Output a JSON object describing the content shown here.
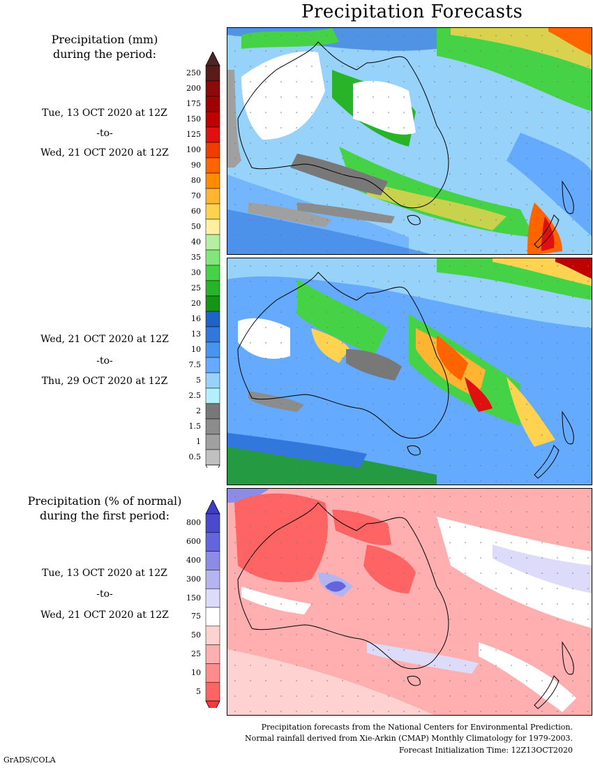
{
  "title": "Precipitation Forecasts",
  "panel1": {
    "label_line1": "Precipitation (mm)",
    "label_line2": "during the period:",
    "start": "Tue, 13 OCT 2020 at 12Z",
    "to": "-to-",
    "end": "Wed, 21 OCT 2020 at 12Z"
  },
  "panel2": {
    "start": "Wed, 21 OCT 2020 at 12Z",
    "to": "-to-",
    "end": "Thu, 29 OCT 2020 at 12Z"
  },
  "panel3": {
    "label_line1": "Precipitation (% of normal)",
    "label_line2": "during the first period:",
    "start": "Tue, 13 OCT 2020 at 12Z",
    "to": "-to-",
    "end": "Wed, 21 OCT 2020 at 12Z"
  },
  "precip_scale": {
    "labels": [
      "250",
      "200",
      "175",
      "150",
      "125",
      "100",
      "90",
      "80",
      "70",
      "60",
      "50",
      "40",
      "35",
      "30",
      "25",
      "20",
      "16",
      "13",
      "10",
      "7.5",
      "5",
      "2.5",
      "2",
      "1.5",
      "1",
      "0.5"
    ],
    "colors": [
      "#5a1a1a",
      "#8c0a0a",
      "#a00000",
      "#c00000",
      "#e01010",
      "#f03c00",
      "#ff6400",
      "#ff8c00",
      "#ffb432",
      "#ffd250",
      "#fff0a0",
      "#b4f0a0",
      "#82e67a",
      "#46d246",
      "#28b428",
      "#149614",
      "#1e64c8",
      "#3278dc",
      "#4696f0",
      "#64aaff",
      "#96d2fa",
      "#b4f0fa",
      "#787878",
      "#8c8c8c",
      "#a0a0a0",
      "#c0c0c0"
    ],
    "top_arrow_color": "#4a2626",
    "bottom_arrow_color": "#ffffff"
  },
  "pct_scale": {
    "labels": [
      "800",
      "600",
      "400",
      "300",
      "150",
      "75",
      "50",
      "25",
      "10",
      "5"
    ],
    "colors": [
      "#4a4acf",
      "#6464dc",
      "#8c8ce6",
      "#b4b4f0",
      "#dcdcfa",
      "#ffffff",
      "#ffd2d2",
      "#ffafaf",
      "#ff8c8c",
      "#ff6464"
    ],
    "top_arrow_color": "#3c3cc8",
    "bottom_arrow_color": "#f03c3c"
  },
  "footer": {
    "line1": "Precipitation forecasts from the National Centers for Environmental Prediction.",
    "line2": "Normal rainfall derived from Xie-Arkin (CMAP) Monthly Climatology for 1979-2003.",
    "line3": "Forecast Initialization Time: 12Z13OCT2020"
  },
  "credit": "GrADS/COLA"
}
